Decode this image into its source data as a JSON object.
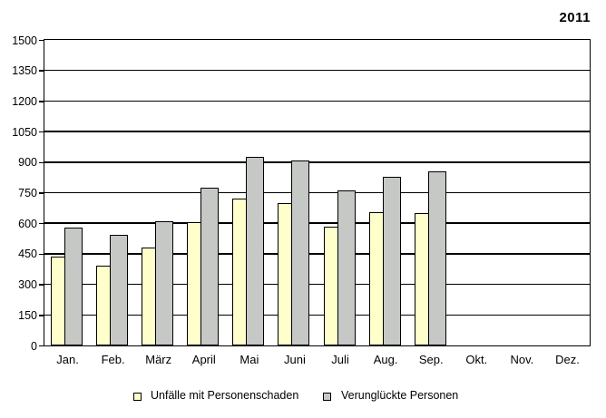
{
  "title": "2011",
  "chart_data": {
    "type": "bar",
    "title": "2011",
    "categories": [
      "Jan.",
      "Feb.",
      "März",
      "April",
      "Mai",
      "Juni",
      "Juli",
      "Aug.",
      "Sep.",
      "Okt.",
      "Nov.",
      "Dez."
    ],
    "series": [
      {
        "name": "Unfälle mit Personenschaden",
        "color": "#FFFFCC",
        "values": [
          435,
          390,
          480,
          605,
          720,
          700,
          585,
          655,
          650,
          null,
          null,
          null
        ]
      },
      {
        "name": "Verunglückte Personen",
        "color": "#C6C8C6",
        "values": [
          580,
          545,
          610,
          775,
          925,
          910,
          760,
          830,
          855,
          null,
          null,
          null
        ]
      }
    ],
    "xlabel": "",
    "ylabel": "",
    "ylim": [
      0,
      1500
    ],
    "y_tick_step": 150,
    "y_ticks": [
      0,
      150,
      300,
      450,
      600,
      750,
      900,
      1050,
      1200,
      1350,
      1500
    ],
    "grid": true,
    "legend_position": "bottom"
  },
  "colors": {
    "background": "#FFFFFF",
    "grid_line": "#000000",
    "bar_border": "#000000",
    "text": "#000000"
  }
}
